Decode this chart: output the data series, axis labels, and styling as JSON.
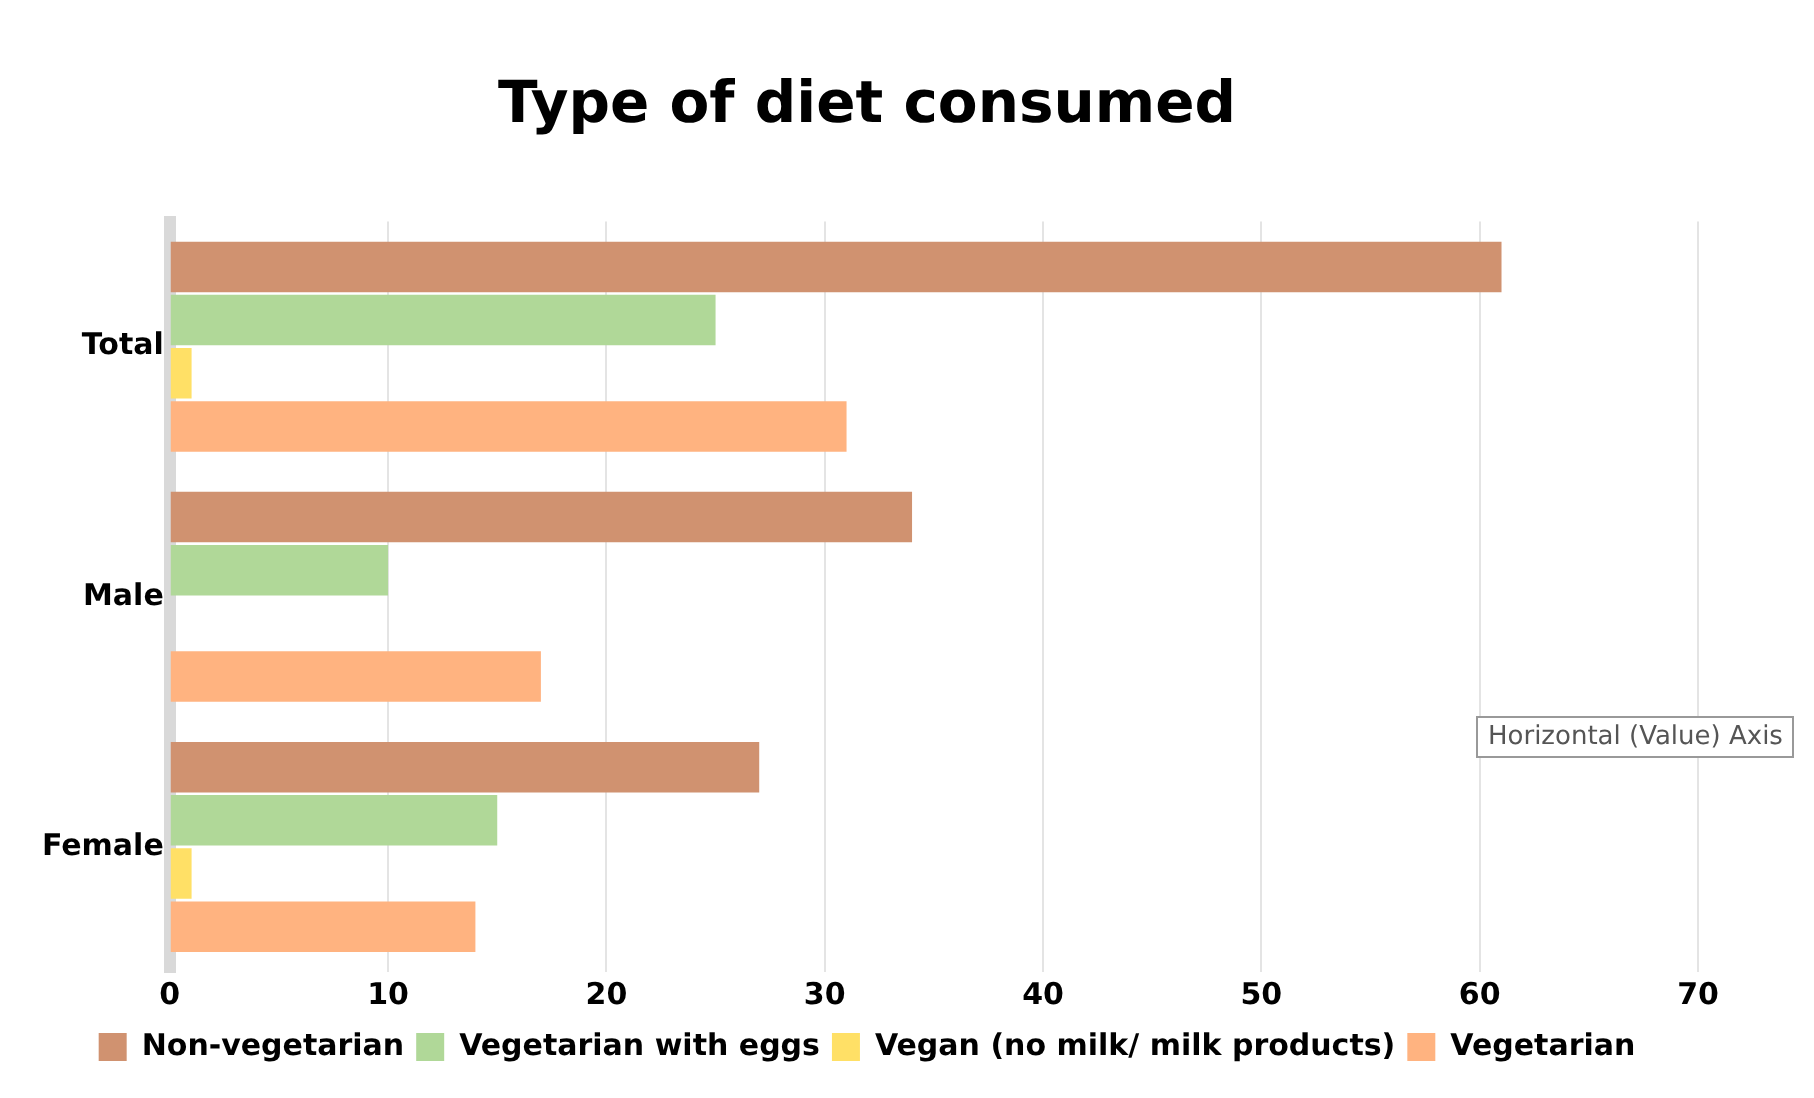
{
  "chart_data": {
    "type": "bar",
    "orientation": "horizontal",
    "title": "Type of diet consumed",
    "categories": [
      "Total",
      "Male",
      "Female"
    ],
    "series": [
      {
        "name": "Non-vegetarian",
        "color": "#d09270",
        "values": [
          61,
          34,
          27
        ]
      },
      {
        "name": "Vegetarian with eggs",
        "color": "#b0d898",
        "values": [
          25,
          10,
          15
        ]
      },
      {
        "name": "Vegan (no milk/ milk products)",
        "color": "#ffe066",
        "values": [
          1,
          0,
          1
        ]
      },
      {
        "name": "Vegetarian",
        "color": "#ffb380",
        "values": [
          31,
          17,
          14
        ]
      }
    ],
    "xlim": [
      0,
      70
    ],
    "xticks": [
      0,
      10,
      20,
      30,
      40,
      50,
      60,
      70
    ],
    "grid": "x",
    "legend": "bottom",
    "annotations": [
      "Horizontal (Value) Axis"
    ]
  }
}
